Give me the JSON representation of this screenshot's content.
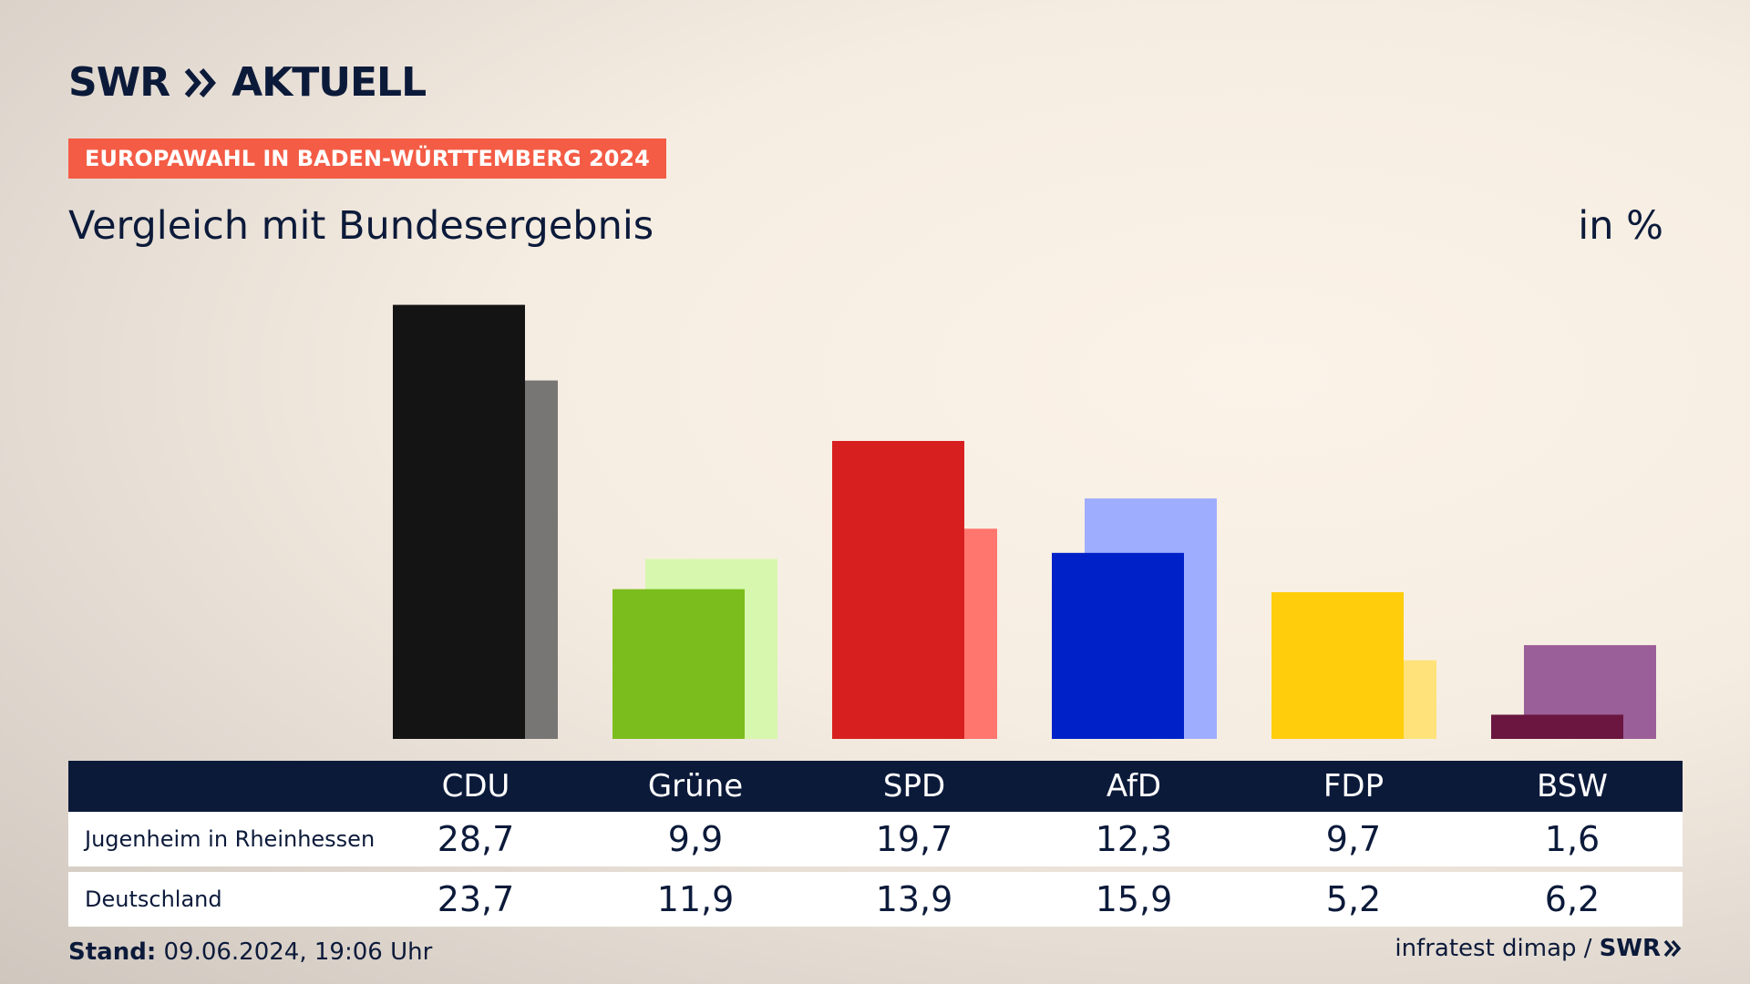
{
  "header": {
    "logo_left": "SWR",
    "logo_right": "AKTUELL",
    "banner": "EUROPAWAHL IN BADEN-WÜRTTEMBERG 2024",
    "subtitle": "Vergleich mit Bundesergebnis",
    "unit": "in %"
  },
  "colors": {
    "navy": "#0c1a3a",
    "banner": "#f45c45",
    "local": [
      "#141414",
      "#7bbd1d",
      "#d81f1f",
      "#0021c8",
      "#ffcd0b",
      "#6a1640"
    ],
    "national": [
      "#787674",
      "#d6f7ad",
      "#ff766e",
      "#9fadff",
      "#ffe27a",
      "#9a5e98"
    ]
  },
  "chart_data": {
    "type": "bar",
    "categories": [
      "CDU",
      "Grüne",
      "SPD",
      "AfD",
      "FDP",
      "BSW"
    ],
    "series": [
      {
        "name": "Jugenheim in Rheinhessen",
        "values": [
          28.7,
          9.9,
          19.7,
          12.3,
          9.7,
          1.6
        ]
      },
      {
        "name": "Deutschland",
        "values": [
          23.7,
          11.9,
          13.9,
          15.9,
          5.2,
          6.2
        ]
      }
    ],
    "title": "Vergleich mit Bundesergebnis",
    "ylabel": "in %",
    "ylim": [
      0,
      30
    ],
    "grid": false,
    "legend": "table below chart"
  },
  "table": {
    "headers": [
      "CDU",
      "Grüne",
      "SPD",
      "AfD",
      "FDP",
      "BSW"
    ],
    "rows": [
      {
        "label": "Jugenheim in Rheinhessen",
        "values": [
          "28,7",
          "9,9",
          "19,7",
          "12,3",
          "9,7",
          "1,6"
        ]
      },
      {
        "label": "Deutschland",
        "values": [
          "23,7",
          "11,9",
          "13,9",
          "15,9",
          "5,2",
          "6,2"
        ]
      }
    ]
  },
  "footer": {
    "stand_label": "Stand:",
    "stand_value": "09.06.2024, 19:06 Uhr",
    "source": "infratest dimap /",
    "source_logo": "SWR"
  }
}
